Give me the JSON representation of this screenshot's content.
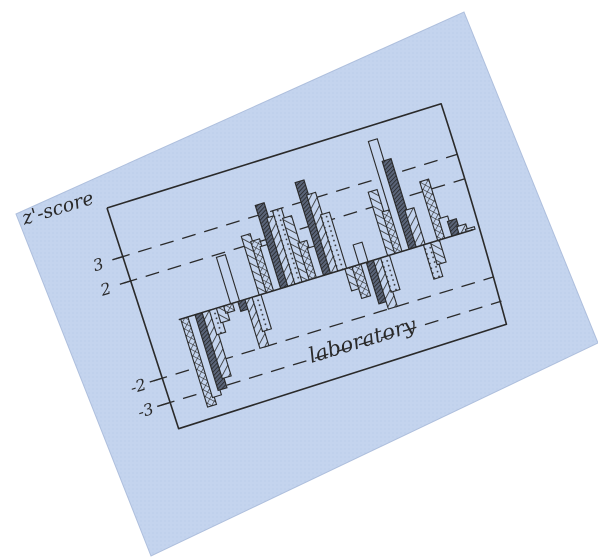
{
  "colors": {
    "paper": "#c4d4ee",
    "paper_dots": "#b3c6e6",
    "ink": "#2a2a2a"
  },
  "chart_data": {
    "type": "bar",
    "ylabel": "z'-score",
    "xlabel": "laboratory",
    "ytick_labels": [
      "3",
      "2",
      "-2",
      "-3"
    ],
    "yticks": [
      3,
      2,
      -2,
      -3
    ],
    "reference_lines_dashed": [
      3,
      2,
      -2,
      -3
    ],
    "ylim": [
      -4,
      5
    ],
    "grid": false,
    "series": [
      {
        "values": [
          -3.6,
          -3.3,
          -3.1,
          -2.7,
          -1.0,
          -0.6,
          -0.3,
          1.9,
          -0.4,
          -2.0,
          -1.4,
          2.4,
          2.1,
          1.8,
          3.4,
          2.8,
          3.0,
          2.6,
          1.5,
          1.2,
          3.8,
          3.2,
          2.3,
          -0.9,
          -1.3,
          0.8,
          -1.7,
          -2.0,
          -1.4,
          2.6,
          1.7,
          4.5,
          3.6,
          1.5,
          -1.4,
          -0.9,
          2.4,
          0.8,
          0.6,
          0.3,
          0.1
        ]
      }
    ]
  }
}
